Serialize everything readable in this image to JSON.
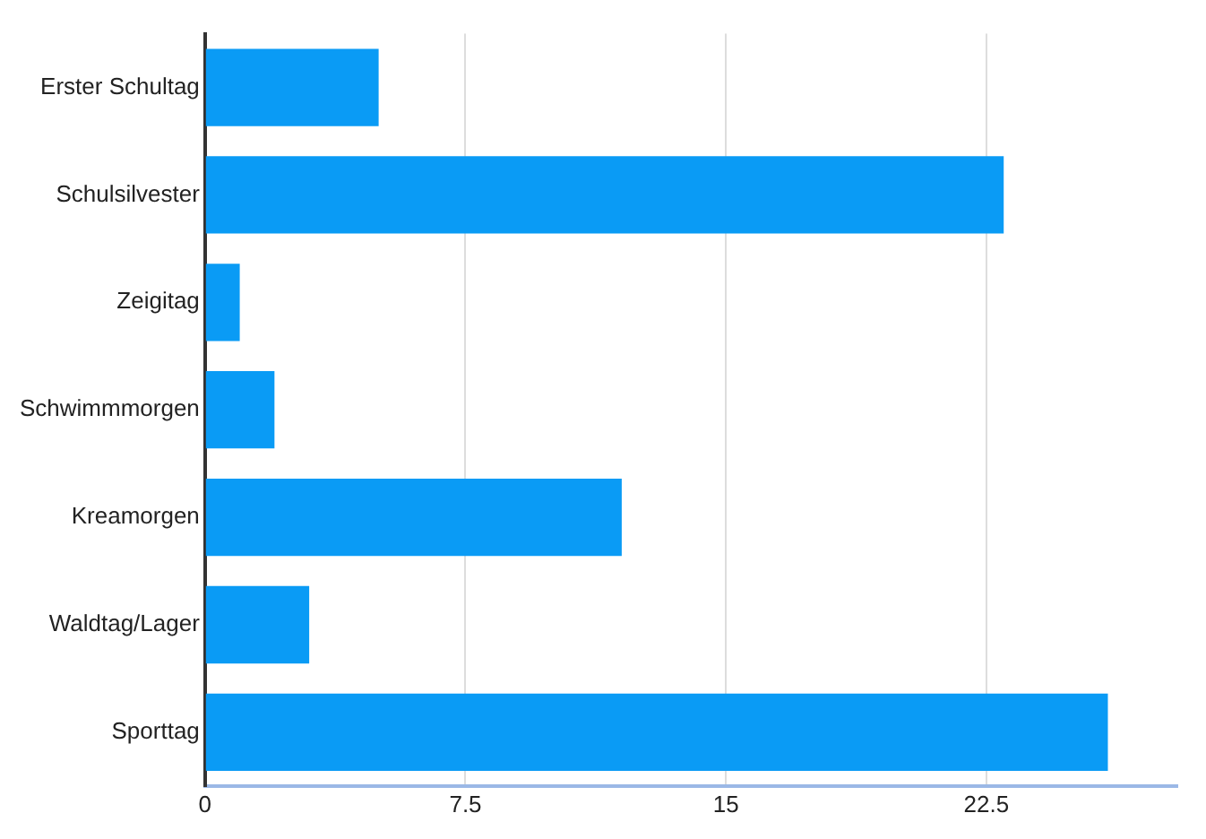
{
  "chart_data": {
    "type": "bar",
    "orientation": "horizontal",
    "categories": [
      "Erster Schultag",
      "Schulsilvester",
      "Zeigitag",
      "Schwimmmorgen",
      "Kreamorgen",
      "Waldtag/Lager",
      "Sporttag"
    ],
    "values": [
      5,
      23,
      1,
      2,
      12,
      3,
      26
    ],
    "color": "#0a9bf5",
    "xlim": [
      0,
      28
    ],
    "xticks": [
      0,
      7.5,
      15,
      22.5
    ],
    "grid": "x"
  }
}
